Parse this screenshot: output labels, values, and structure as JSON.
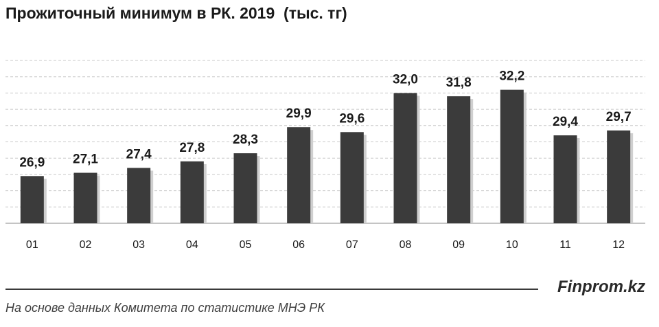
{
  "title": "Прожиточный минимум в РК. 2019  (тыс. тг)",
  "brand": "Finprom.kz",
  "source": "На основе данных  Комитета по статистике МНЭ РК",
  "colors": {
    "bar": "#3b3b3b",
    "shadow": "#cfcfcf",
    "grid": "#c8c8c8",
    "axis": "#b0b0b0"
  },
  "chart_data": {
    "type": "bar",
    "categories": [
      "01",
      "02",
      "03",
      "04",
      "05",
      "06",
      "07",
      "08",
      "09",
      "10",
      "11",
      "12"
    ],
    "values": [
      26.9,
      27.1,
      27.4,
      27.8,
      28.3,
      29.9,
      29.6,
      32.0,
      31.8,
      32.2,
      29.4,
      29.7
    ],
    "data_labels": [
      "26,9",
      "27,1",
      "27,4",
      "27,8",
      "28,3",
      "29,9",
      "29,6",
      "32,0",
      "31,8",
      "32,2",
      "29,4",
      "29,7"
    ],
    "title": "Прожиточный минимум в РК. 2019  (тыс. тг)",
    "xlabel": "",
    "ylabel": "",
    "ylim": [
      24,
      34
    ],
    "grid": true,
    "legend": "none"
  }
}
